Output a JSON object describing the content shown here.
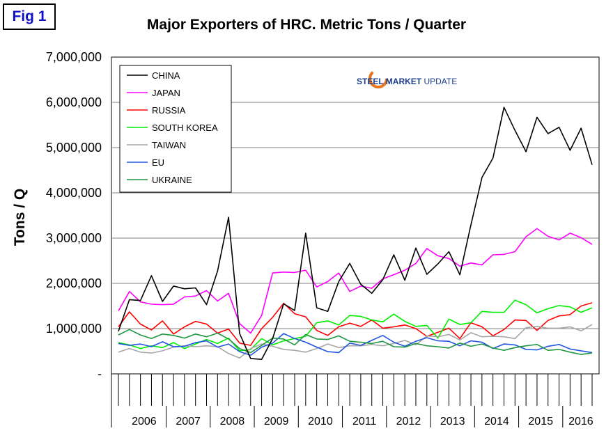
{
  "figure": {
    "badge": "Fig 1"
  },
  "logo": {
    "word1": "STEEL MARKET",
    "word2": " UPDATE",
    "accent": "#e8731a"
  },
  "chart_data": {
    "type": "line",
    "title": "Major Exporters of HRC. Metric Tons / Quarter",
    "ylabel": "Tons / Q",
    "xlabel": "",
    "ylim": [
      0,
      7000000
    ],
    "y_ticks": [
      {
        "value": 0,
        "label": "-"
      },
      {
        "value": 1000000,
        "label": "1,000,000"
      },
      {
        "value": 2000000,
        "label": "2,000,000"
      },
      {
        "value": 3000000,
        "label": "3,000,000"
      },
      {
        "value": 4000000,
        "label": "4,000,000"
      },
      {
        "value": 5000000,
        "label": "5,000,000"
      },
      {
        "value": 6000000,
        "label": "6,000,000"
      },
      {
        "value": 7000000,
        "label": "7,000,000"
      }
    ],
    "grid": true,
    "legend_position": "top-left",
    "years": [
      "2006",
      "2007",
      "2008",
      "2009",
      "2010",
      "2011",
      "2012",
      "2013",
      "2014",
      "2015",
      "2016"
    ],
    "months": [
      "2005-12",
      "2006-01",
      "2006-02",
      "2006-03",
      "2006-04",
      "2006-05",
      "2006-06",
      "2006-07",
      "2006-08",
      "2006-09",
      "2006-10",
      "2006-11",
      "2006-12",
      "2007-01",
      "2007-02",
      "2007-03",
      "2007-04",
      "2007-05",
      "2007-06",
      "2007-07",
      "2007-08",
      "2007-09",
      "2007-10",
      "2007-11",
      "2007-12",
      "2008-01",
      "2008-02",
      "2008-03",
      "2008-04",
      "2008-05",
      "2008-06",
      "2008-07",
      "2008-08",
      "2008-09",
      "2008-10",
      "2008-11",
      "2008-12",
      "2009-01",
      "2009-02",
      "2009-03",
      "2009-04",
      "2009-05",
      "2009-06",
      "2009-07",
      "2009-08",
      "2009-09",
      "2009-10",
      "2009-11",
      "2009-12",
      "2010-01",
      "2010-02",
      "2010-03",
      "2010-04",
      "2010-05",
      "2010-06",
      "2010-07",
      "2010-08",
      "2010-09",
      "2010-10",
      "2010-11",
      "2010-12",
      "2011-01",
      "2011-02",
      "2011-03",
      "2011-04",
      "2011-05",
      "2011-06",
      "2011-07",
      "2011-08",
      "2011-09",
      "2011-10",
      "2011-11",
      "2011-12",
      "2012-01",
      "2012-02",
      "2012-03",
      "2012-04",
      "2012-05",
      "2012-06",
      "2012-07",
      "2012-08",
      "2012-09",
      "2012-10",
      "2012-11",
      "2012-12",
      "2013-01",
      "2013-02",
      "2013-03",
      "2013-04",
      "2013-05",
      "2013-06",
      "2013-07",
      "2013-08",
      "2013-09",
      "2013-10",
      "2013-11",
      "2013-12",
      "2014-01",
      "2014-02",
      "2014-03",
      "2014-04",
      "2014-05",
      "2014-06",
      "2014-07",
      "2014-08",
      "2014-09",
      "2014-10",
      "2014-11",
      "2014-12",
      "2015-01",
      "2015-02",
      "2015-03",
      "2015-04",
      "2015-05",
      "2015-06",
      "2015-07",
      "2015-08",
      "2015-09",
      "2015-10",
      "2015-11",
      "2015-12",
      "2016-01",
      "2016-02",
      "2016-03",
      "2016-04",
      "2016-05",
      "2016-06",
      "2016-07",
      "2016-08",
      "2016-09"
    ],
    "series": [
      {
        "name": "CHINA",
        "color": "#000000",
        "x": [
          "2005-12",
          "2006-03",
          "2006-06",
          "2006-09",
          "2006-12",
          "2007-03",
          "2007-06",
          "2007-09",
          "2007-12",
          "2008-03",
          "2008-06",
          "2008-09",
          "2008-12",
          "2009-03",
          "2009-06",
          "2009-09",
          "2009-12",
          "2010-03",
          "2010-06",
          "2010-09",
          "2010-12",
          "2011-03",
          "2011-06",
          "2011-09",
          "2011-12",
          "2012-03",
          "2012-06",
          "2012-09",
          "2012-12",
          "2013-03",
          "2013-06",
          "2013-09",
          "2013-12",
          "2014-03",
          "2014-06",
          "2014-09",
          "2014-12",
          "2015-03",
          "2015-06",
          "2015-09",
          "2015-12",
          "2016-03",
          "2016-06",
          "2016-09"
        ],
        "values": [
          940000,
          1640000,
          1620000,
          2170000,
          1600000,
          1940000,
          1880000,
          1900000,
          1530000,
          2270000,
          3460000,
          890000,
          340000,
          320000,
          780000,
          1550000,
          1400000,
          3110000,
          1460000,
          1380000,
          2040000,
          2440000,
          1980000,
          1780000,
          2080000,
          2630000,
          2070000,
          2780000,
          2200000,
          2430000,
          2700000,
          2190000,
          3290000,
          4340000,
          4770000,
          5890000,
          5380000,
          4910000,
          5670000,
          5310000,
          5450000,
          4940000,
          5430000,
          4620000
        ]
      },
      {
        "name": "JAPAN",
        "color": "#ff00ff",
        "x": [
          "2005-12",
          "2006-03",
          "2006-06",
          "2006-09",
          "2006-12",
          "2007-03",
          "2007-06",
          "2007-09",
          "2007-12",
          "2008-03",
          "2008-06",
          "2008-09",
          "2008-12",
          "2009-03",
          "2009-06",
          "2009-09",
          "2009-12",
          "2010-03",
          "2010-06",
          "2010-09",
          "2010-12",
          "2011-03",
          "2011-06",
          "2011-09",
          "2011-12",
          "2012-03",
          "2012-06",
          "2012-09",
          "2012-12",
          "2013-03",
          "2013-06",
          "2013-09",
          "2013-12",
          "2014-03",
          "2014-06",
          "2014-09",
          "2014-12",
          "2015-03",
          "2015-06",
          "2015-09",
          "2015-12",
          "2016-03",
          "2016-06",
          "2016-09"
        ],
        "values": [
          1390000,
          1820000,
          1590000,
          1540000,
          1530000,
          1540000,
          1700000,
          1720000,
          1840000,
          1610000,
          1780000,
          1110000,
          900000,
          1290000,
          2230000,
          2250000,
          2240000,
          2290000,
          1920000,
          2040000,
          2230000,
          1820000,
          1940000,
          1890000,
          2100000,
          2190000,
          2290000,
          2440000,
          2770000,
          2610000,
          2550000,
          2380000,
          2450000,
          2410000,
          2630000,
          2640000,
          2700000,
          3030000,
          3210000,
          3040000,
          2960000,
          3110000,
          3010000,
          2860000
        ]
      },
      {
        "name": "RUSSIA",
        "color": "#ff0000",
        "x": [
          "2005-12",
          "2006-03",
          "2006-06",
          "2006-09",
          "2006-12",
          "2007-03",
          "2007-06",
          "2007-09",
          "2007-12",
          "2008-03",
          "2008-06",
          "2008-09",
          "2008-12",
          "2009-03",
          "2009-06",
          "2009-09",
          "2009-12",
          "2010-03",
          "2010-06",
          "2010-09",
          "2010-12",
          "2011-03",
          "2011-06",
          "2011-09",
          "2011-12",
          "2012-03",
          "2012-06",
          "2012-09",
          "2012-12",
          "2013-03",
          "2013-06",
          "2013-09",
          "2013-12",
          "2014-03",
          "2014-06",
          "2014-09",
          "2014-12",
          "2015-03",
          "2015-06",
          "2015-09",
          "2015-12",
          "2016-03",
          "2016-06",
          "2016-09"
        ],
        "values": [
          1040000,
          1370000,
          1100000,
          970000,
          1170000,
          880000,
          1040000,
          1160000,
          1100000,
          900000,
          990000,
          680000,
          630000,
          1000000,
          1250000,
          1560000,
          1330000,
          1260000,
          960000,
          850000,
          1040000,
          1120000,
          1050000,
          1190000,
          1010000,
          1040000,
          1080000,
          1000000,
          830000,
          920000,
          1010000,
          780000,
          1130000,
          1040000,
          840000,
          980000,
          1190000,
          1180000,
          960000,
          1180000,
          1280000,
          1310000,
          1500000,
          1570000
        ]
      },
      {
        "name": "SOUTH KOREA",
        "color": "#00ee00",
        "x": [
          "2005-12",
          "2006-03",
          "2006-06",
          "2006-09",
          "2006-12",
          "2007-03",
          "2007-06",
          "2007-09",
          "2007-12",
          "2008-03",
          "2008-06",
          "2008-09",
          "2008-12",
          "2009-03",
          "2009-06",
          "2009-09",
          "2009-12",
          "2010-03",
          "2010-06",
          "2010-09",
          "2010-12",
          "2011-03",
          "2011-06",
          "2011-09",
          "2011-12",
          "2012-03",
          "2012-06",
          "2012-09",
          "2012-12",
          "2013-03",
          "2013-06",
          "2013-09",
          "2013-12",
          "2014-03",
          "2014-06",
          "2014-09",
          "2014-12",
          "2015-03",
          "2015-06",
          "2015-09",
          "2015-12",
          "2016-03",
          "2016-06",
          "2016-09"
        ],
        "values": [
          690000,
          640000,
          560000,
          620000,
          580000,
          690000,
          560000,
          660000,
          760000,
          670000,
          790000,
          510000,
          540000,
          780000,
          640000,
          730000,
          780000,
          830000,
          1130000,
          1170000,
          1080000,
          1290000,
          1270000,
          1190000,
          1150000,
          1320000,
          1160000,
          1050000,
          1070000,
          790000,
          1210000,
          1090000,
          1130000,
          1380000,
          1360000,
          1360000,
          1630000,
          1530000,
          1350000,
          1440000,
          1510000,
          1480000,
          1360000,
          1460000
        ]
      },
      {
        "name": "TAIWAN",
        "color": "#a6a6a6",
        "x": [
          "2005-12",
          "2006-03",
          "2006-06",
          "2006-09",
          "2006-12",
          "2007-03",
          "2007-06",
          "2007-09",
          "2007-12",
          "2008-03",
          "2008-06",
          "2008-09",
          "2008-12",
          "2009-03",
          "2009-06",
          "2009-09",
          "2009-12",
          "2010-03",
          "2010-06",
          "2010-09",
          "2010-12",
          "2011-03",
          "2011-06",
          "2011-09",
          "2011-12",
          "2012-03",
          "2012-06",
          "2012-09",
          "2012-12",
          "2013-03",
          "2013-06",
          "2013-09",
          "2013-12",
          "2014-03",
          "2014-06",
          "2014-09",
          "2014-12",
          "2015-03",
          "2015-06",
          "2015-09",
          "2015-12",
          "2016-03",
          "2016-06",
          "2016-09"
        ],
        "values": [
          480000,
          560000,
          480000,
          460000,
          510000,
          590000,
          620000,
          600000,
          620000,
          600000,
          450000,
          350000,
          560000,
          660000,
          610000,
          540000,
          520000,
          480000,
          560000,
          660000,
          580000,
          620000,
          620000,
          650000,
          620000,
          670000,
          740000,
          640000,
          840000,
          820000,
          870000,
          750000,
          910000,
          820000,
          830000,
          820000,
          780000,
          1020000,
          1050000,
          1010000,
          1010000,
          1040000,
          950000,
          1090000
        ]
      },
      {
        "name": "EU",
        "color": "#2255e0",
        "x": [
          "2005-12",
          "2006-03",
          "2006-06",
          "2006-09",
          "2006-12",
          "2007-03",
          "2007-06",
          "2007-09",
          "2007-12",
          "2008-03",
          "2008-06",
          "2008-09",
          "2008-12",
          "2009-03",
          "2009-06",
          "2009-09",
          "2009-12",
          "2010-03",
          "2010-06",
          "2010-09",
          "2010-12",
          "2011-03",
          "2011-06",
          "2011-09",
          "2011-12",
          "2012-03",
          "2012-06",
          "2012-09",
          "2012-12",
          "2013-03",
          "2013-06",
          "2013-09",
          "2013-12",
          "2014-03",
          "2014-06",
          "2014-09",
          "2014-12",
          "2015-03",
          "2015-06",
          "2015-09",
          "2015-12",
          "2016-03",
          "2016-06",
          "2016-09"
        ],
        "values": [
          670000,
          630000,
          660000,
          600000,
          710000,
          600000,
          610000,
          690000,
          730000,
          590000,
          660000,
          490000,
          410000,
          590000,
          680000,
          890000,
          780000,
          700000,
          590000,
          490000,
          470000,
          680000,
          630000,
          740000,
          850000,
          700000,
          610000,
          720000,
          800000,
          730000,
          720000,
          620000,
          730000,
          700000,
          560000,
          660000,
          640000,
          540000,
          530000,
          610000,
          650000,
          550000,
          510000,
          470000
        ]
      },
      {
        "name": "UKRAINE",
        "color": "#1e9640",
        "x": [
          "2005-12",
          "2006-03",
          "2006-06",
          "2006-09",
          "2006-12",
          "2007-03",
          "2007-06",
          "2007-09",
          "2007-12",
          "2008-03",
          "2008-06",
          "2008-09",
          "2008-12",
          "2009-03",
          "2009-06",
          "2009-09",
          "2009-12",
          "2010-03",
          "2010-06",
          "2010-09",
          "2010-12",
          "2011-03",
          "2011-06",
          "2011-09",
          "2011-12",
          "2012-03",
          "2012-06",
          "2012-09",
          "2012-12",
          "2013-03",
          "2013-06",
          "2013-09",
          "2013-12",
          "2014-03",
          "2014-06",
          "2014-09",
          "2014-12",
          "2015-03",
          "2015-06",
          "2015-09",
          "2015-12",
          "2016-03",
          "2016-06",
          "2016-09"
        ],
        "values": [
          860000,
          980000,
          860000,
          780000,
          880000,
          850000,
          790000,
          880000,
          820000,
          900000,
          770000,
          560000,
          470000,
          630000,
          790000,
          770000,
          640000,
          870000,
          770000,
          760000,
          840000,
          720000,
          700000,
          670000,
          720000,
          600000,
          590000,
          670000,
          620000,
          600000,
          570000,
          680000,
          610000,
          660000,
          570000,
          520000,
          580000,
          620000,
          650000,
          520000,
          540000,
          480000,
          430000,
          460000
        ]
      }
    ]
  }
}
